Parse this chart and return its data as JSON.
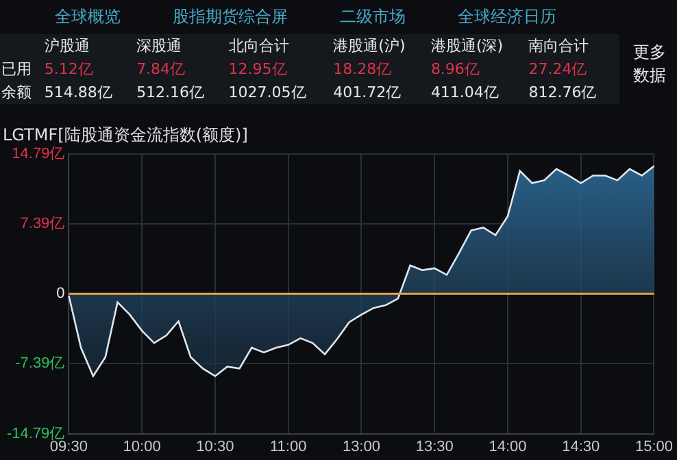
{
  "chart_data": [
    {
      "type": "other",
      "annotations": [
        "全球概览",
        "股指期货综合屏",
        "二级市场",
        "全球经济日历",
        "更多数据"
      ],
      "categories": [
        "沪股通",
        "深股通",
        "北向合计",
        "港股通(沪)",
        "港股通(深)",
        "南向合计"
      ],
      "y_categories": [
        "已用",
        "余额"
      ],
      "cell_labels": [
        [
          "5.12亿",
          "7.84亿",
          "12.95亿",
          "18.28亿",
          "8.96亿",
          "27.24亿"
        ],
        [
          "514.88亿",
          "512.16亿",
          "1027.05亿",
          "401.72亿",
          "411.04亿",
          "812.76亿"
        ]
      ]
    },
    {
      "type": "area",
      "title": "LGTMF[陆股通资金流指数(额度)]",
      "categories": [
        "09:30",
        null,
        null,
        null,
        null,
        null,
        "10:00",
        null,
        null,
        null,
        null,
        null,
        "10:30",
        null,
        null,
        null,
        null,
        null,
        "11:00",
        null,
        null,
        null,
        null,
        null,
        "13:00",
        null,
        null,
        null,
        null,
        null,
        "13:30",
        null,
        null,
        null,
        null,
        null,
        "14:00",
        null,
        null,
        null,
        null,
        null,
        "14:30",
        null,
        null,
        null,
        null,
        null,
        "15:00"
      ],
      "series": [
        {
          "color": "#dfe6ee",
          "values": [
            -0.2,
            -5.7,
            -8.7,
            -6.7,
            -0.9,
            -2.2,
            -3.9,
            -5.2,
            -4.4,
            -2.9,
            -6.7,
            -7.9,
            -8.7,
            -7.7,
            -7.9,
            -5.7,
            -6.2,
            -5.7,
            -5.4,
            -4.7,
            -5.2,
            -6.4,
            -4.8,
            -3.0,
            -2.2,
            -1.5,
            -1.2,
            -0.5,
            3.0,
            2.5,
            2.7,
            2.0,
            4.3,
            6.7,
            7.0,
            6.2,
            8.2,
            13.0,
            11.7,
            12.0,
            13.2,
            12.5,
            11.7,
            12.5,
            12.5,
            12.0,
            13.2,
            12.5,
            13.5
          ]
        }
      ],
      "ylim": [
        -14.79,
        14.79
      ],
      "yticks": [
        {
          "value": -14.79,
          "label": "-14.79亿"
        },
        {
          "value": -7.39,
          "label": "-7.39亿"
        },
        0,
        {
          "value": 7.39,
          "label": "7.39亿"
        },
        {
          "value": 14.79,
          "label": "14.79亿"
        }
      ],
      "ref_lines": [
        {
          "axis": "y",
          "value": 0,
          "color": "#e8a040"
        }
      ],
      "grid": true,
      "legend": false
    }
  ]
}
